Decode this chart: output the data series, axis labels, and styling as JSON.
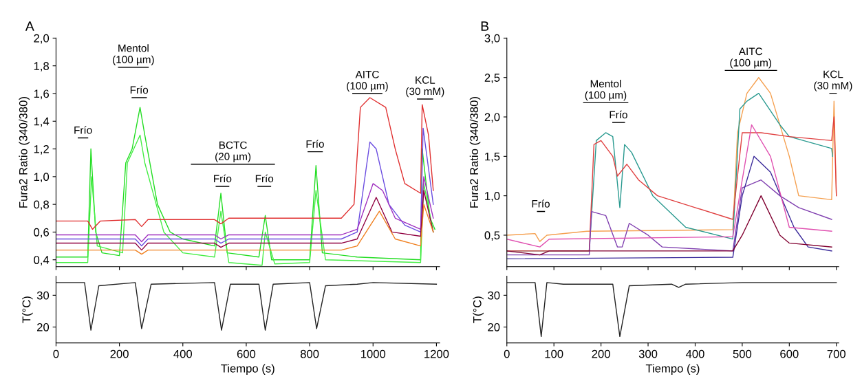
{
  "chart_data": [
    {
      "type": "line",
      "xlim": [
        0,
        1210
      ],
      "ylim": [
        0.35,
        2.0
      ],
      "xticks": [
        0,
        200,
        400,
        600,
        800,
        1000,
        1200
      ],
      "tick_labels": "y",
      "ylabel": "Fura2 Ratio (340/380)",
      "yticks": [
        {
          "value": 0.4,
          "label": "0,4"
        },
        {
          "value": 0.6,
          "label": "0,6"
        },
        {
          "value": 0.8,
          "label": "0,8"
        },
        {
          "value": 1.0,
          "label": "1,0"
        },
        {
          "value": 1.2,
          "label": "1,2"
        },
        {
          "value": 1.4,
          "label": "1,4"
        },
        {
          "value": 1.6,
          "label": "1,6"
        },
        {
          "value": 1.8,
          "label": "1,8"
        },
        {
          "value": 2.0,
          "label": "2,0"
        }
      ],
      "annotations": [
        "A",
        {
          "text": "Frío",
          "x": 85,
          "y": 1.28
        },
        {
          "text": "Mentol\n(100 µm)",
          "x": 244,
          "y": 1.79
        },
        {
          "text": "Frío",
          "x": 262,
          "y": 1.57
        },
        {
          "text": "BCTC\n(20 µm)",
          "x": 558,
          "y": 1.09
        },
        {
          "text": "Frío",
          "x": 525,
          "y": 0.93
        },
        {
          "text": "Frío",
          "x": 657,
          "y": 0.93
        },
        {
          "text": "Frío",
          "x": 817,
          "y": 1.18
        },
        {
          "text": "AITC\n(100 µm)",
          "x": 982,
          "y": 1.6
        },
        {
          "text": "KCL\n(30 mM)",
          "x": 1164,
          "y": 1.56
        }
      ],
      "series": [
        {
          "color": "#000000",
          "x": [
            70,
            100
          ],
          "values": [
            1.28,
            1.28
          ]
        },
        {
          "color": "#000000",
          "x": [
            197,
            291
          ],
          "values": [
            1.79,
            1.79
          ]
        },
        {
          "color": "#000000",
          "x": [
            240,
            285
          ],
          "values": [
            1.57,
            1.57
          ]
        },
        {
          "color": "#000000",
          "x": [
            427,
            689
          ],
          "values": [
            1.09,
            1.09
          ]
        },
        {
          "color": "#000000",
          "x": [
            505,
            545
          ],
          "values": [
            0.93,
            0.93
          ]
        },
        {
          "color": "#000000",
          "x": [
            637,
            677
          ],
          "values": [
            0.93,
            0.93
          ]
        },
        {
          "color": "#000000",
          "x": [
            795,
            840
          ],
          "values": [
            1.18,
            1.18
          ]
        },
        {
          "color": "#000000",
          "x": [
            936,
            1028
          ],
          "values": [
            1.6,
            1.6
          ]
        },
        {
          "color": "#000000",
          "x": [
            1140,
            1188
          ],
          "values": [
            1.56,
            1.56
          ]
        },
        {
          "color": "#22dd22",
          "x": [
            0,
            100,
            110,
            125,
            145,
            200,
            220,
            240,
            265,
            280,
            320,
            360,
            400,
            500,
            520,
            540,
            640,
            660,
            680,
            800,
            820,
            840,
            950,
            1150,
            1155,
            1180,
            1195
          ],
          "values": [
            0.42,
            0.42,
            1.2,
            0.6,
            0.45,
            0.43,
            1.1,
            1.2,
            1.5,
            1.3,
            0.8,
            0.6,
            0.55,
            0.5,
            0.88,
            0.45,
            0.42,
            0.72,
            0.4,
            0.4,
            1.08,
            0.45,
            0.42,
            0.4,
            1.2,
            0.7,
            0.62
          ]
        },
        {
          "color": "#44ee44",
          "x": [
            0,
            100,
            112,
            130,
            210,
            225,
            265,
            280,
            340,
            400,
            500,
            520,
            545,
            650,
            660,
            690,
            800,
            820,
            850,
            1150,
            1160,
            1190
          ],
          "values": [
            0.38,
            0.38,
            1.0,
            0.5,
            0.45,
            1.1,
            1.3,
            1.1,
            0.6,
            0.45,
            0.42,
            0.75,
            0.38,
            0.36,
            0.6,
            0.37,
            0.38,
            0.9,
            0.4,
            0.38,
            0.95,
            0.6
          ]
        },
        {
          "color": "#e03030",
          "x": [
            0,
            100,
            115,
            140,
            250,
            270,
            290,
            500,
            520,
            545,
            900,
            940,
            960,
            990,
            1040,
            1070,
            1100,
            1150,
            1155,
            1175,
            1190
          ],
          "values": [
            0.68,
            0.68,
            0.62,
            0.68,
            0.69,
            0.64,
            0.69,
            0.69,
            0.66,
            0.7,
            0.7,
            0.8,
            1.5,
            1.57,
            1.5,
            1.2,
            0.95,
            0.88,
            1.52,
            1.3,
            0.9
          ]
        },
        {
          "color": "#6a4ce0",
          "x": [
            0,
            250,
            270,
            290,
            500,
            520,
            545,
            900,
            950,
            990,
            1010,
            1050,
            1100,
            1150,
            1158,
            1190
          ],
          "values": [
            0.55,
            0.55,
            0.5,
            0.55,
            0.55,
            0.52,
            0.55,
            0.55,
            0.6,
            1.25,
            1.2,
            0.8,
            0.65,
            0.6,
            1.35,
            0.8
          ]
        },
        {
          "color": "#a030c0",
          "x": [
            0,
            250,
            270,
            290,
            500,
            520,
            545,
            900,
            950,
            1000,
            1030,
            1070,
            1150,
            1160,
            1190
          ],
          "values": [
            0.58,
            0.58,
            0.53,
            0.58,
            0.58,
            0.55,
            0.58,
            0.58,
            0.62,
            0.95,
            0.9,
            0.7,
            0.62,
            1.0,
            0.7
          ]
        },
        {
          "color": "#900040",
          "x": [
            0,
            250,
            270,
            290,
            500,
            520,
            545,
            900,
            950,
            1010,
            1060,
            1150,
            1160,
            1190
          ],
          "values": [
            0.52,
            0.52,
            0.47,
            0.52,
            0.52,
            0.49,
            0.52,
            0.52,
            0.55,
            0.85,
            0.6,
            0.57,
            0.9,
            0.6
          ]
        },
        {
          "color": "#f08020",
          "x": [
            0,
            250,
            270,
            290,
            900,
            950,
            1020,
            1070,
            1150,
            1160,
            1190
          ],
          "values": [
            0.47,
            0.47,
            0.44,
            0.47,
            0.47,
            0.5,
            0.75,
            0.55,
            0.5,
            0.8,
            0.6
          ]
        }
      ]
    },
    {
      "type": "line",
      "xlim": [
        0,
        1210
      ],
      "ylim": [
        15,
        36
      ],
      "xticks": [
        0,
        200,
        400,
        600,
        800,
        1000,
        1200
      ],
      "yticks": [
        20,
        30
      ],
      "xlabel": "Tiempo (s)",
      "ylabel": "T(°C)",
      "series": [
        {
          "color": "#222222",
          "x": [
            0,
            90,
            110,
            135,
            250,
            270,
            300,
            500,
            522,
            550,
            640,
            660,
            685,
            800,
            822,
            850,
            950,
            1000,
            1200
          ],
          "values": [
            34,
            34,
            19,
            33,
            34,
            19.5,
            33.5,
            34,
            19,
            33.5,
            33.5,
            19,
            33.5,
            34,
            19.5,
            33,
            33.5,
            34,
            33.5
          ]
        }
      ]
    },
    {
      "type": "line",
      "xlim": [
        0,
        705
      ],
      "ylim": [
        0.1,
        3.0
      ],
      "xticks": [
        0,
        100,
        200,
        300,
        400,
        500,
        600,
        700
      ],
      "tick_labels": "y",
      "ylabel": "Fura2 Ratio (340/380)",
      "yticks": [
        {
          "value": 0.5,
          "label": "0,5"
        },
        {
          "value": 1.0,
          "label": "1,0"
        },
        {
          "value": 1.5,
          "label": "1,5"
        },
        {
          "value": 2.0,
          "label": "2,0"
        },
        {
          "value": 2.5,
          "label": "2,5"
        },
        {
          "value": 3.0,
          "label": "3,0"
        }
      ],
      "annotations": [
        "B",
        {
          "text": "Frío",
          "x": 72,
          "y": 0.8
        },
        {
          "text": "Mentol\n(100 µm)",
          "x": 210,
          "y": 2.18
        },
        {
          "text": "Frío",
          "x": 237,
          "y": 1.93
        },
        {
          "text": "AITC\n(100 µm)",
          "x": 518,
          "y": 2.59
        },
        {
          "text": "KCL\n(30 mM)",
          "x": 693,
          "y": 2.3
        }
      ],
      "series": [
        {
          "color": "#000000",
          "x": [
            65,
            80
          ],
          "values": [
            0.8,
            0.8
          ]
        },
        {
          "color": "#000000",
          "x": [
            163,
            257
          ],
          "values": [
            2.18,
            2.18
          ]
        },
        {
          "color": "#000000",
          "x": [
            225,
            250
          ],
          "values": [
            1.93,
            1.93
          ]
        },
        {
          "color": "#000000",
          "x": [
            464,
            573
          ],
          "values": [
            2.59,
            2.59
          ]
        },
        {
          "color": "#000000",
          "x": [
            686,
            700
          ],
          "values": [
            2.3,
            2.3
          ]
        },
        {
          "color": "#f5a050",
          "x": [
            0,
            60,
            70,
            85,
            170,
            480,
            490,
            510,
            535,
            560,
            600,
            620,
            690,
            695,
            700
          ],
          "values": [
            0.5,
            0.52,
            0.42,
            0.5,
            0.55,
            0.57,
            1.8,
            2.3,
            2.5,
            2.3,
            1.5,
            1.0,
            0.95,
            2.2,
            1.0
          ]
        },
        {
          "color": "#2a9a90",
          "x": [
            0,
            175,
            190,
            210,
            225,
            240,
            250,
            265,
            310,
            380,
            480,
            495,
            510,
            535,
            580,
            600,
            690,
            692
          ],
          "values": [
            0.3,
            0.3,
            1.7,
            1.8,
            1.75,
            0.85,
            1.65,
            1.55,
            1.0,
            0.6,
            0.45,
            2.1,
            2.2,
            2.3,
            1.9,
            1.75,
            1.6,
            1.5
          ]
        },
        {
          "color": "#e04040",
          "x": [
            0,
            175,
            185,
            200,
            225,
            235,
            255,
            280,
            320,
            400,
            480,
            500,
            540,
            600,
            690,
            695,
            700
          ],
          "values": [
            0.3,
            0.3,
            1.65,
            1.7,
            1.5,
            1.25,
            1.4,
            1.2,
            1.0,
            0.85,
            0.7,
            1.8,
            1.8,
            1.75,
            1.7,
            2.0,
            1.0
          ]
        },
        {
          "color": "#8040b0",
          "x": [
            0,
            175,
            180,
            210,
            235,
            245,
            260,
            300,
            330,
            480,
            500,
            540,
            580,
            620,
            690
          ],
          "values": [
            0.25,
            0.25,
            0.8,
            0.75,
            0.35,
            0.35,
            0.65,
            0.5,
            0.35,
            0.3,
            1.1,
            1.2,
            1.0,
            0.85,
            0.7
          ]
        },
        {
          "color": "#3a2a9a",
          "x": [
            0,
            480,
            500,
            525,
            560,
            610,
            640,
            690
          ],
          "values": [
            0.2,
            0.22,
            1.0,
            1.5,
            1.3,
            0.6,
            0.35,
            0.3
          ]
        },
        {
          "color": "#800030",
          "x": [
            0,
            70,
            90,
            480,
            500,
            540,
            580,
            600,
            690
          ],
          "values": [
            0.3,
            0.25,
            0.3,
            0.3,
            0.5,
            1.0,
            0.5,
            0.4,
            0.35
          ]
        },
        {
          "color": "#e050b0",
          "x": [
            0,
            70,
            90,
            480,
            500,
            520,
            560,
            600,
            690
          ],
          "values": [
            0.45,
            0.35,
            0.45,
            0.48,
            1.2,
            1.9,
            1.5,
            0.6,
            0.55
          ]
        }
      ]
    },
    {
      "type": "line",
      "xlim": [
        0,
        705
      ],
      "ylim": [
        15,
        36
      ],
      "xticks": [
        0,
        100,
        200,
        300,
        400,
        500,
        600,
        700
      ],
      "yticks": [
        20,
        30
      ],
      "xlabel": "Tiempo (s)",
      "ylabel": "T(°C)",
      "series": [
        {
          "color": "#222222",
          "x": [
            0,
            60,
            73,
            85,
            120,
            225,
            240,
            260,
            350,
            365,
            380,
            500,
            700
          ],
          "values": [
            34,
            34,
            17,
            34,
            33.5,
            33.5,
            17,
            33,
            33.5,
            32.5,
            33.5,
            34,
            34
          ]
        }
      ]
    }
  ]
}
